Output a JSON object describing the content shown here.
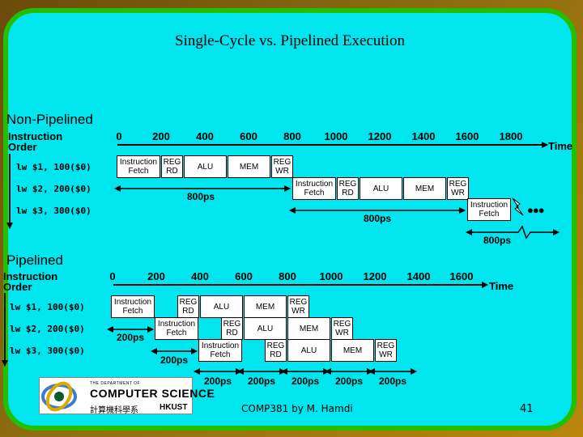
{
  "title": "Single-Cycle vs. Pipelined Execution",
  "footer": {
    "course": "COMP381 by M. Hamdi",
    "page": "41"
  },
  "logo": {
    "line1": "THE DEPARTMENT OF",
    "name_left": "COMPUTER",
    "name_right": "SCIENCE",
    "chinese": "計算機科學系",
    "school": "HKUST"
  },
  "non_pipelined": {
    "label": "Non-Pipelined",
    "order_header": [
      "Instruction",
      "Order"
    ],
    "ticks": [
      "0",
      "200",
      "400",
      "600",
      "800",
      "1000",
      "1200",
      "1400",
      "1600",
      "1800"
    ],
    "time_label": "Time",
    "instructions": [
      "lw $1, 100($0)",
      "lw $2, 200($0)",
      "lw $3, 300($0)"
    ],
    "stages": {
      "fetch": [
        "Instruction",
        "Fetch"
      ],
      "reg_read": [
        "REG",
        "RD"
      ],
      "alu": "ALU",
      "mem": "MEM",
      "reg_write": [
        "REG",
        "WR"
      ]
    },
    "durations": [
      "800ps",
      "800ps",
      "800ps"
    ],
    "ellipsis": "●●●"
  },
  "pipelined": {
    "label": "Pipelined",
    "order_header": [
      "Instruction",
      "Order"
    ],
    "ticks": [
      "0",
      "200",
      "400",
      "600",
      "800",
      "1000",
      "1200",
      "1400",
      "1600"
    ],
    "time_label": "Time",
    "instructions": [
      "lw $1, 100($0)",
      "lw $2, 200($0)",
      "lw $3, 300($0)"
    ],
    "offsets": [
      "200ps",
      "200ps"
    ],
    "stage_times": [
      "200ps",
      "200ps",
      "200ps",
      "200ps",
      "200ps"
    ]
  }
}
